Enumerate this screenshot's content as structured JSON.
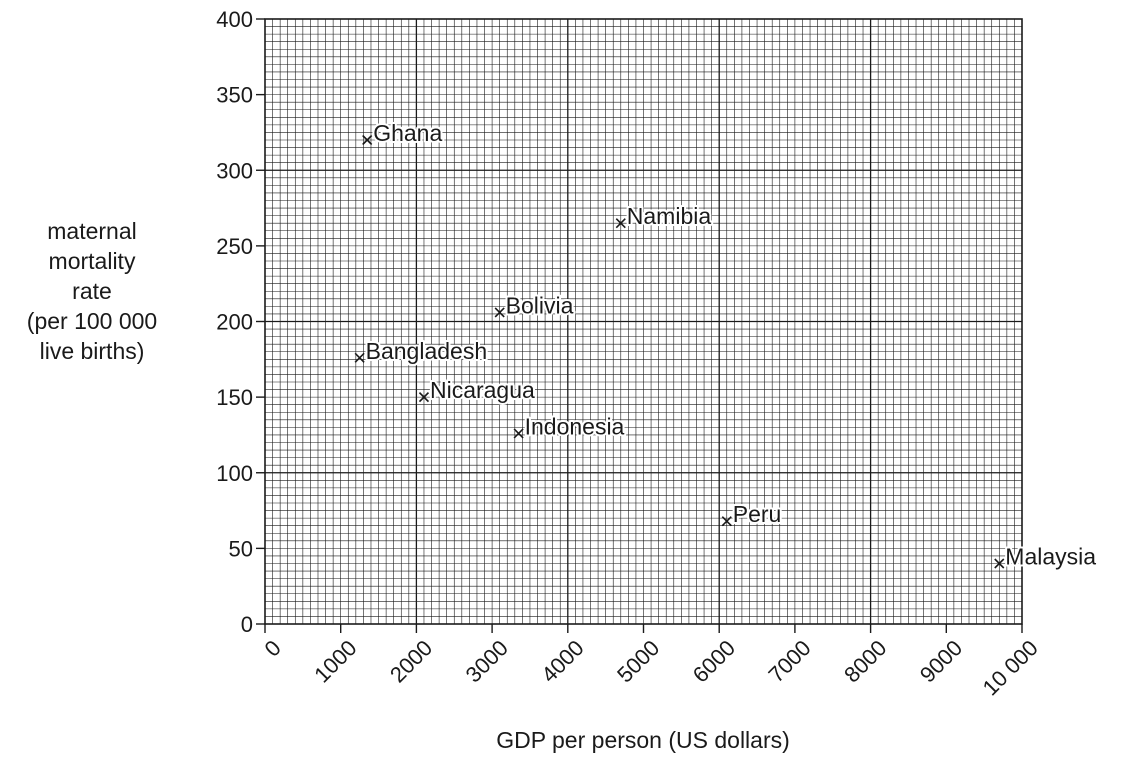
{
  "chart_data": {
    "type": "scatter",
    "xlabel": "GDP per person (US dollars)",
    "ylabel": [
      "maternal",
      "mortality",
      "rate",
      "(per 100 000",
      "live births)"
    ],
    "xlim": [
      0,
      10000
    ],
    "ylim": [
      0,
      400
    ],
    "x_ticks": [
      0,
      1000,
      2000,
      3000,
      4000,
      5000,
      6000,
      7000,
      8000,
      9000,
      10000
    ],
    "x_tick_labels": [
      "0",
      "1000",
      "2000",
      "3000",
      "4000",
      "5000",
      "6000",
      "7000",
      "8000",
      "9000",
      "10 000"
    ],
    "y_ticks": [
      0,
      50,
      100,
      150,
      200,
      250,
      300,
      350,
      400
    ],
    "y_tick_labels": [
      "0",
      "50",
      "100",
      "150",
      "200",
      "250",
      "300",
      "350",
      "400"
    ],
    "grid": true,
    "marker": "×",
    "points": [
      {
        "label": "Ghana",
        "x": 1350,
        "y": 320
      },
      {
        "label": "Namibia",
        "x": 4700,
        "y": 265
      },
      {
        "label": "Bolivia",
        "x": 3100,
        "y": 206
      },
      {
        "label": "Bangladesh",
        "x": 1250,
        "y": 176
      },
      {
        "label": "Nicaragua",
        "x": 2100,
        "y": 150
      },
      {
        "label": "Indonesia",
        "x": 3350,
        "y": 126
      },
      {
        "label": "Peru",
        "x": 6100,
        "y": 68
      },
      {
        "label": "Malaysia",
        "x": 9700,
        "y": 40
      }
    ]
  }
}
